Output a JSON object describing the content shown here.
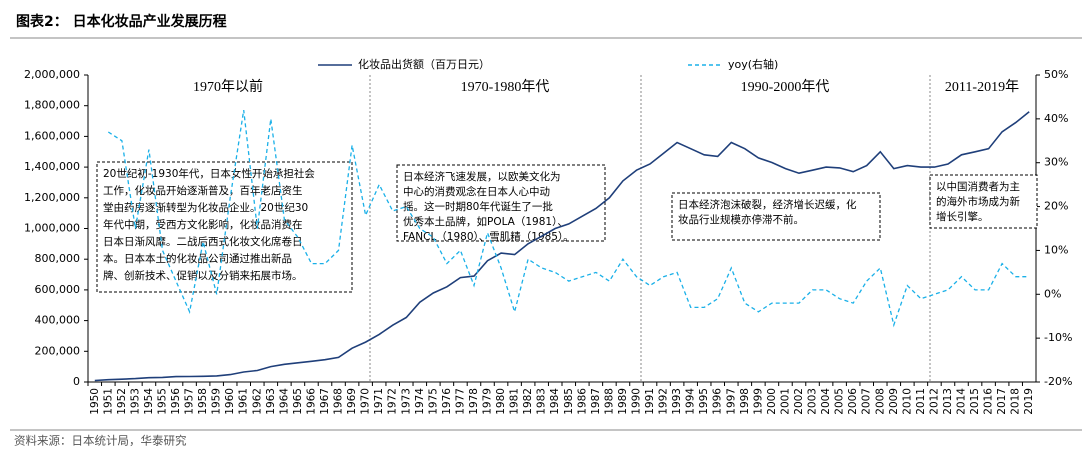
{
  "chart_data": {
    "type": "line",
    "title": "图表2：  日本化妆品产业发展历程",
    "source": "资料来源：日本统计局，华泰研究",
    "categories": [
      "1950",
      "1951",
      "1952",
      "1953",
      "1954",
      "1955",
      "1956",
      "1957",
      "1958",
      "1959",
      "1960",
      "1961",
      "1962",
      "1963",
      "1964",
      "1965",
      "1966",
      "1967",
      "1968",
      "1969",
      "1970",
      "1971",
      "1972",
      "1973",
      "1974",
      "1975",
      "1976",
      "1977",
      "1978",
      "1979",
      "1980",
      "1981",
      "1982",
      "1983",
      "1984",
      "1985",
      "1986",
      "1987",
      "1988",
      "1989",
      "1990",
      "1991",
      "1992",
      "1993",
      "1994",
      "1995",
      "1996",
      "1997",
      "1998",
      "1999",
      "2000",
      "2001",
      "2002",
      "2003",
      "2004",
      "2005",
      "2006",
      "2007",
      "2008",
      "2009",
      "2010",
      "2011",
      "2012",
      "2013",
      "2014",
      "2015",
      "2016",
      "2017",
      "2018",
      "2019"
    ],
    "series": [
      {
        "name": "化妆品出货额（百万日元）",
        "color": "#1f3f7a",
        "dashed": false,
        "values": [
          10000,
          15000,
          18000,
          22000,
          28000,
          30000,
          35000,
          36000,
          37000,
          40000,
          48000,
          65000,
          75000,
          100000,
          115000,
          125000,
          135000,
          145000,
          160000,
          220000,
          260000,
          310000,
          370000,
          420000,
          520000,
          580000,
          620000,
          680000,
          690000,
          790000,
          840000,
          830000,
          900000,
          950000,
          1000000,
          1030000,
          1080000,
          1130000,
          1200000,
          1310000,
          1380000,
          1420000,
          1490000,
          1560000,
          1520000,
          1480000,
          1470000,
          1560000,
          1520000,
          1460000,
          1430000,
          1390000,
          1360000,
          1380000,
          1400000,
          1395000,
          1370000,
          1410000,
          1500000,
          1390000,
          1410000,
          1400000,
          1400000,
          1420000,
          1480000,
          1500000,
          1520000,
          1630000,
          1690000,
          1760000
        ]
      },
      {
        "name": "yoy(右轴)",
        "color": "#1ab0e8",
        "dashed": true,
        "axis": "y2",
        "values": [
          null,
          37,
          35,
          15,
          33,
          10,
          3,
          -4,
          12,
          0,
          22,
          42,
          15,
          40,
          17,
          13,
          7,
          7,
          10,
          34,
          18,
          25,
          19,
          20,
          15,
          13,
          7,
          10,
          2,
          14,
          6,
          -4,
          8,
          6,
          5,
          3,
          4,
          5,
          3,
          8,
          4,
          2,
          4,
          5,
          -3,
          -3,
          -1,
          6,
          -2,
          -4,
          -2,
          -2,
          -2,
          1,
          1,
          -1,
          -2,
          3,
          6,
          -7,
          2,
          -1,
          0,
          1,
          4,
          1,
          1,
          7,
          4,
          4
        ]
      }
    ],
    "ylim": [
      0,
      2000000
    ],
    "yticks": [
      {
        "value": 0,
        "label": "0"
      },
      {
        "value": 200000,
        "label": "200,000"
      },
      {
        "value": 400000,
        "label": "400,000"
      },
      {
        "value": 600000,
        "label": "600,000"
      },
      {
        "value": 800000,
        "label": "800,000"
      },
      {
        "value": 1000000,
        "label": "1,000,000"
      },
      {
        "value": 1200000,
        "label": "1,200,000"
      },
      {
        "value": 1400000,
        "label": "1,400,000"
      },
      {
        "value": 1600000,
        "label": "1,600,000"
      },
      {
        "value": 1800000,
        "label": "1,800,000"
      },
      {
        "value": 2000000,
        "label": "2,000,000"
      }
    ],
    "y2lim": [
      -20,
      50
    ],
    "y2ticks": [
      {
        "value": -20,
        "label": "-20%"
      },
      {
        "value": -10,
        "label": "-10%"
      },
      {
        "value": 0,
        "label": "0%"
      },
      {
        "value": 10,
        "label": "10%"
      },
      {
        "value": 20,
        "label": "20%"
      },
      {
        "value": 30,
        "label": "30%"
      },
      {
        "value": 40,
        "label": "40%"
      },
      {
        "value": 50,
        "label": "50%"
      }
    ],
    "grid": false,
    "legend": "top",
    "periods": [
      "1970年以前",
      "1970-1980年代",
      "1990-2000年代",
      "2011-2019年"
    ],
    "notes": [
      [
        "20世纪初-1930年代，日本女性开始承担社会",
        "工作，化妆品开始逐渐普及，百年老店资生",
        "堂由药房逐渐转型为化妆品企业。20世纪30",
        "年代中期，受西方文化影响，化妆品消费在",
        "日本日渐风靡。二战后西式化妆文化席卷日",
        "本。日本本土的化妆品公司通过推出新品",
        "牌、创新技术、促销以及分销来拓展市场。"
      ],
      [
        "日本经济飞速发展，以欧美文化为",
        "中心的消费观念在日本人心中动",
        "摇。这一时期80年代诞生了一批",
        "优秀本土品牌，如POLA（1981）、",
        "FANCL（1980）、雪肌精（1985）。"
      ],
      [
        "日本经济泡沫破裂，经济增长迟缓，化",
        "妆品行业规模亦停滞不前。"
      ],
      [
        "以中国消费者为主",
        "的海外市场成为新",
        "增长引擎。"
      ]
    ]
  }
}
